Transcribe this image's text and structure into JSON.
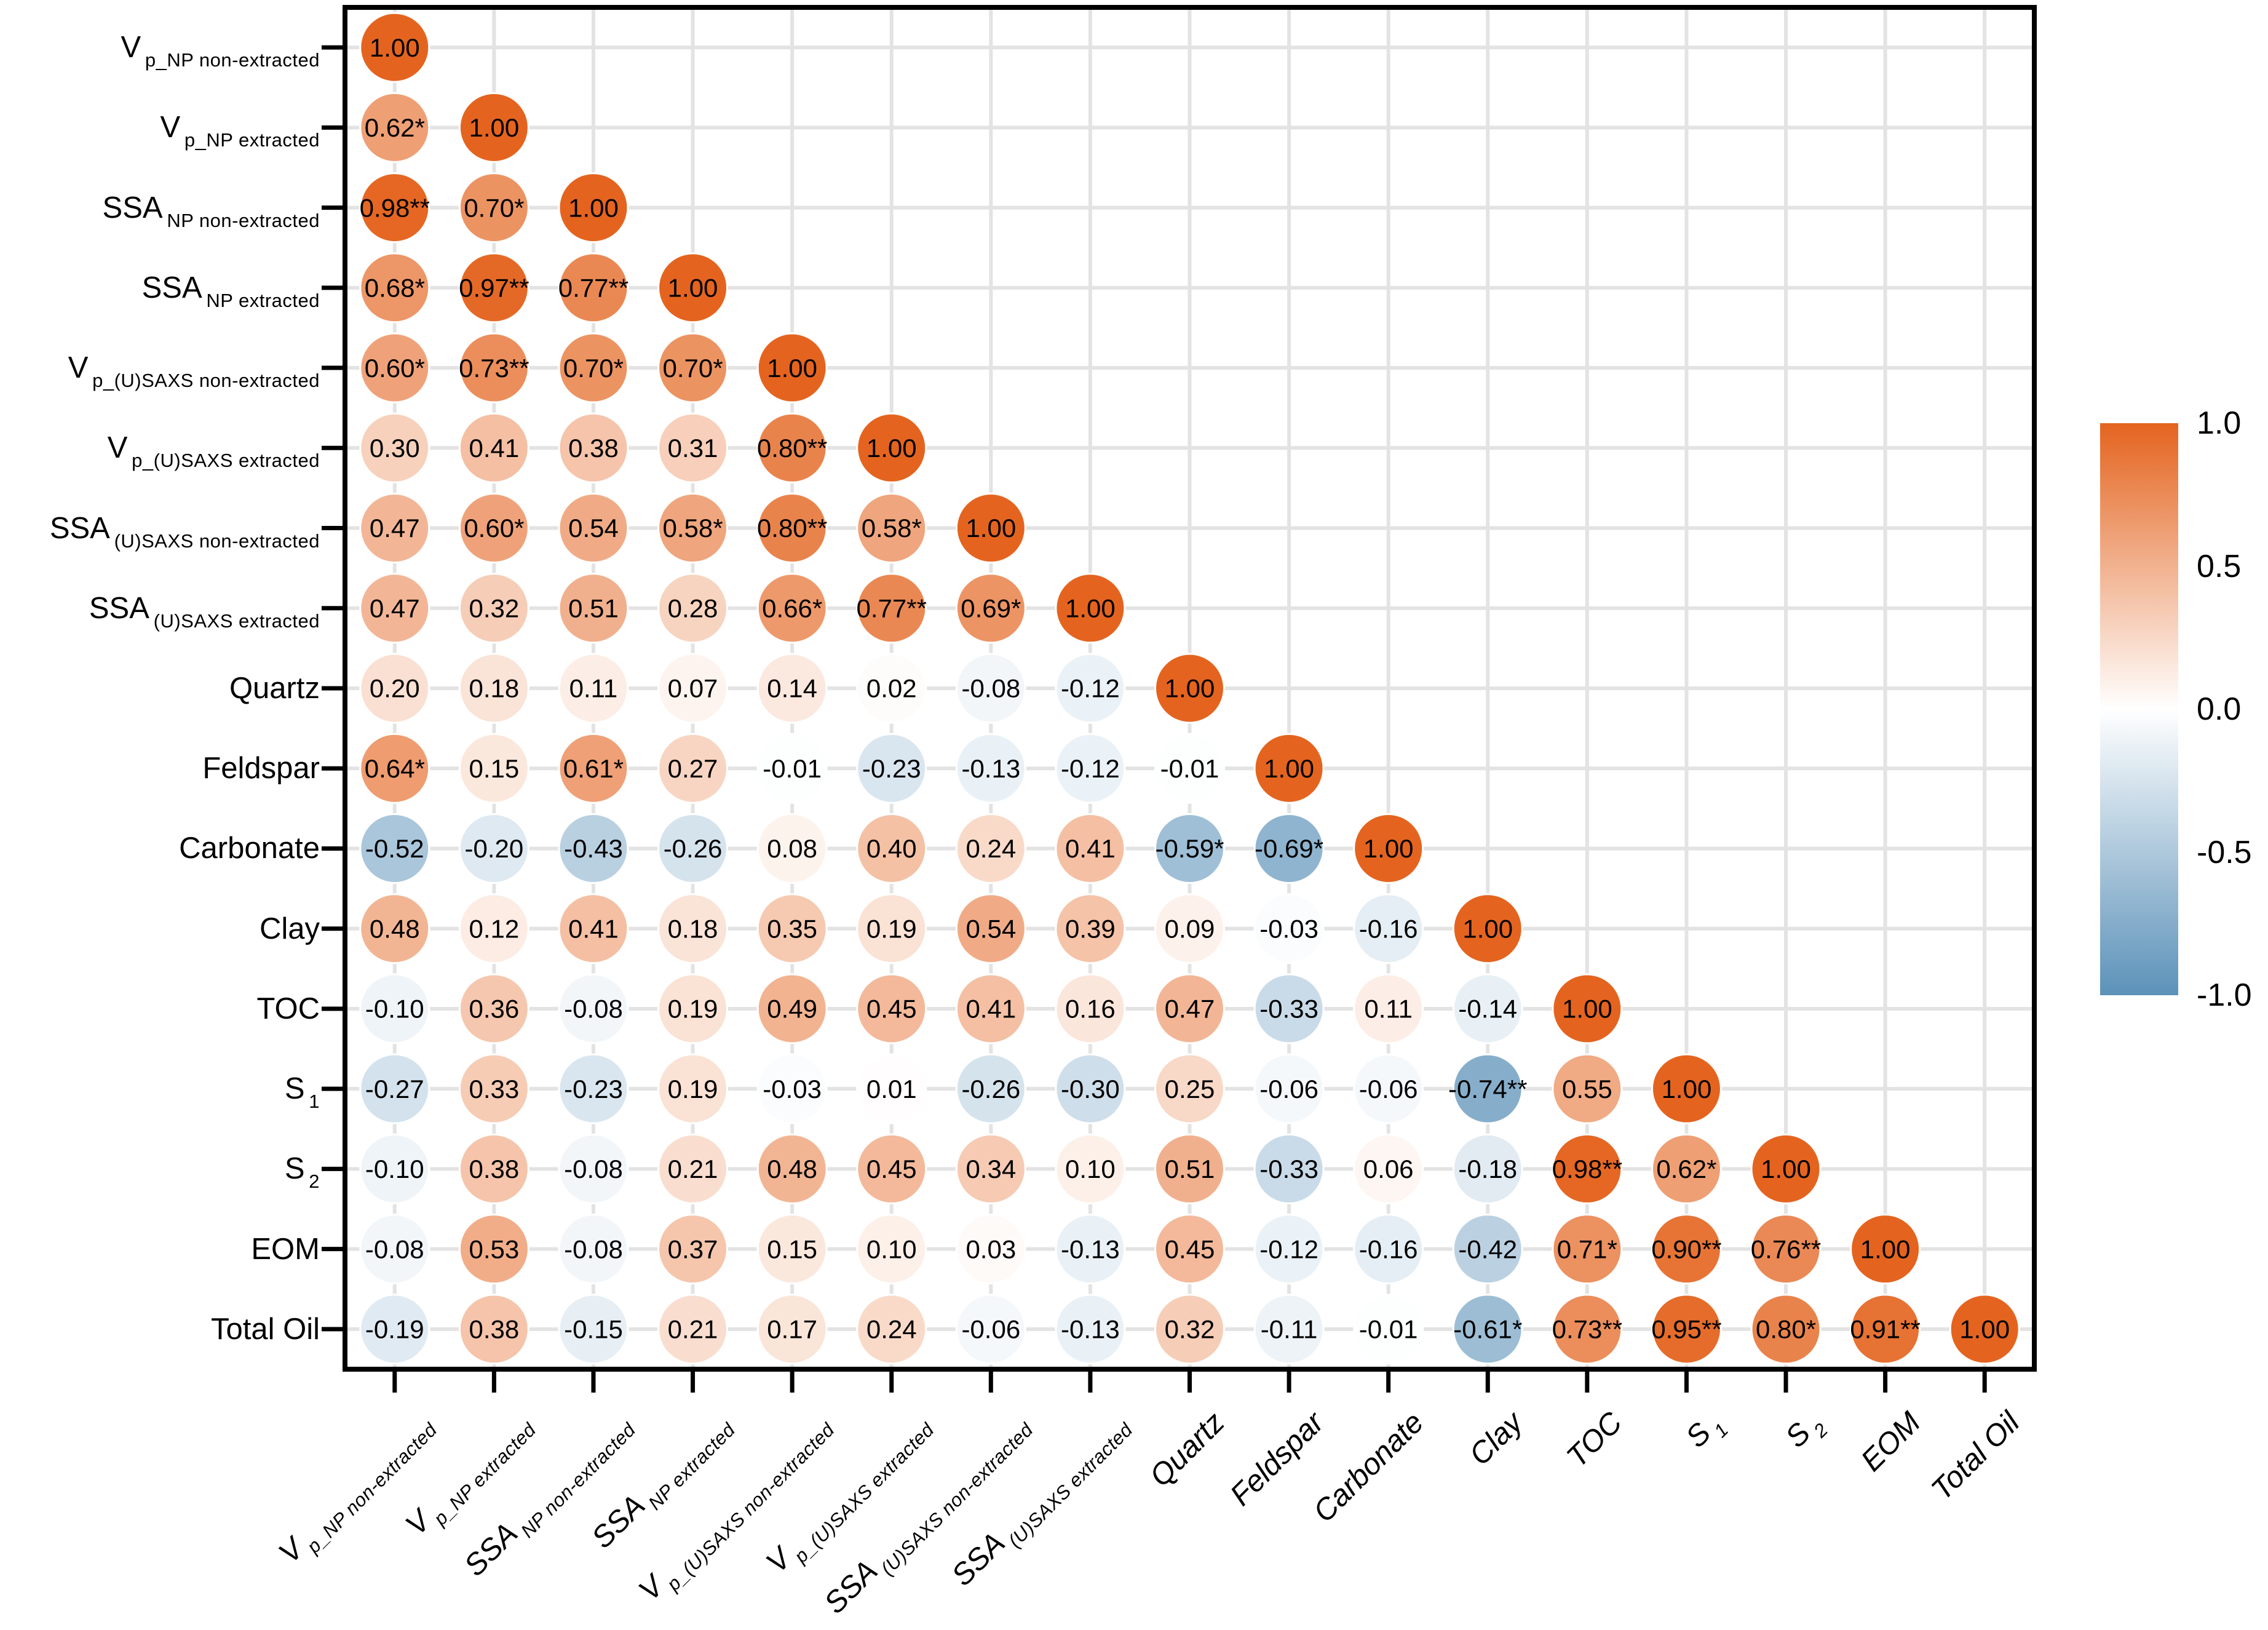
{
  "figure": {
    "background": "#ffffff"
  },
  "chart_data": {
    "type": "heatmap",
    "subtype": "correlation-matrix-lower-triangle",
    "marker": "circle",
    "grid": true,
    "value_range": [
      -1,
      1
    ],
    "variables": [
      {
        "main": "V",
        "sub": "p_NP non-extracted"
      },
      {
        "main": "V",
        "sub": "p_NP extracted"
      },
      {
        "main": "SSA",
        "sub": "NP non-extracted"
      },
      {
        "main": "SSA",
        "sub": "NP extracted"
      },
      {
        "main": "V",
        "sub": "p_(U)SAXS non-extracted"
      },
      {
        "main": "V",
        "sub": "p_(U)SAXS extracted"
      },
      {
        "main": "SSA",
        "sub": "(U)SAXS non-extracted"
      },
      {
        "main": "SSA",
        "sub": "(U)SAXS extracted"
      },
      {
        "main": "Quartz",
        "sub": ""
      },
      {
        "main": "Feldspar",
        "sub": ""
      },
      {
        "main": "Carbonate",
        "sub": ""
      },
      {
        "main": "Clay",
        "sub": ""
      },
      {
        "main": "TOC",
        "sub": ""
      },
      {
        "main": "S",
        "sub": "1"
      },
      {
        "main": "S",
        "sub": "2"
      },
      {
        "main": "EOM",
        "sub": ""
      },
      {
        "main": "Total Oil",
        "sub": ""
      }
    ],
    "lower_triangle_values": [
      [
        "1.00"
      ],
      [
        "0.62*",
        "1.00"
      ],
      [
        "0.98**",
        "0.70*",
        "1.00"
      ],
      [
        "0.68*",
        "0.97**",
        "0.77**",
        "1.00"
      ],
      [
        "0.60*",
        "0.73**",
        "0.70*",
        "0.70*",
        "1.00"
      ],
      [
        "0.30",
        "0.41",
        "0.38",
        "0.31",
        "0.80**",
        "1.00"
      ],
      [
        "0.47",
        "0.60*",
        "0.54",
        "0.58*",
        "0.80**",
        "0.58*",
        "1.00"
      ],
      [
        "0.47",
        "0.32",
        "0.51",
        "0.28",
        "0.66*",
        "0.77**",
        "0.69*",
        "1.00"
      ],
      [
        "0.20",
        "0.18",
        "0.11",
        "0.07",
        "0.14",
        "0.02",
        "-0.08",
        "-0.12",
        "1.00"
      ],
      [
        "0.64*",
        "0.15",
        "0.61*",
        "0.27",
        "-0.01",
        "-0.23",
        "-0.13",
        "-0.12",
        "-0.01",
        "1.00"
      ],
      [
        "-0.52",
        "-0.20",
        "-0.43",
        "-0.26",
        "0.08",
        "0.40",
        "0.24",
        "0.41",
        "-0.59*",
        "-0.69*",
        "1.00"
      ],
      [
        "0.48",
        "0.12",
        "0.41",
        "0.18",
        "0.35",
        "0.19",
        "0.54",
        "0.39",
        "0.09",
        "-0.03",
        "-0.16",
        "1.00"
      ],
      [
        "-0.10",
        "0.36",
        "-0.08",
        "0.19",
        "0.49",
        "0.45",
        "0.41",
        "0.16",
        "0.47",
        "-0.33",
        "0.11",
        "-0.14",
        "1.00"
      ],
      [
        "-0.27",
        "0.33",
        "-0.23",
        "0.19",
        "-0.03",
        "0.01",
        "-0.26",
        "-0.30",
        "0.25",
        "-0.06",
        "-0.06",
        "-0.74**",
        "0.55",
        "1.00"
      ],
      [
        "-0.10",
        "0.38",
        "-0.08",
        "0.21",
        "0.48",
        "0.45",
        "0.34",
        "0.10",
        "0.51",
        "-0.33",
        "0.06",
        "-0.18",
        "0.98**",
        "0.62*",
        "1.00"
      ],
      [
        "-0.08",
        "0.53",
        "-0.08",
        "0.37",
        "0.15",
        "0.10",
        "0.03",
        "-0.13",
        "0.45",
        "-0.12",
        "-0.16",
        "-0.42",
        "0.71*",
        "0.90**",
        "0.76**",
        "1.00"
      ],
      [
        "-0.19",
        "0.38",
        "-0.15",
        "0.21",
        "0.17",
        "0.24",
        "-0.06",
        "-0.13",
        "0.32",
        "-0.11",
        "-0.01",
        "-0.61*",
        "0.73**",
        "0.95**",
        "0.80*",
        "0.91**",
        "1.00"
      ]
    ],
    "colorbar": {
      "ticks": [
        "1.0",
        "0.5",
        "0.0",
        "-0.5",
        "-1.0"
      ],
      "positive_color": "#E4641F",
      "zero_color": "#FFFFFF",
      "negative_color": "#5C92B9"
    },
    "grid_color": "#E3E3E3",
    "axis_color": "#000000"
  }
}
